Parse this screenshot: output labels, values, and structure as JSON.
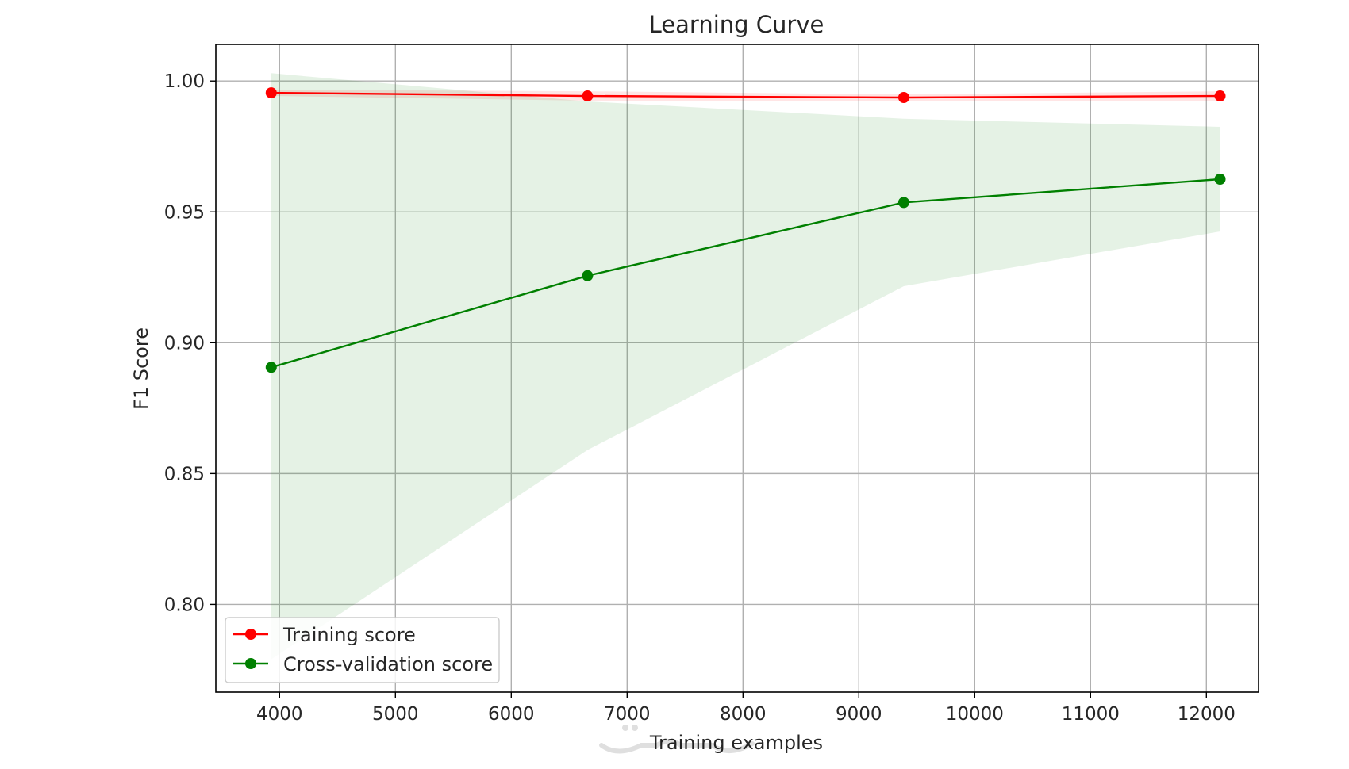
{
  "chart_data": {
    "type": "line",
    "title": "Learning Curve",
    "xlabel": "Training examples",
    "ylabel": "F1 Score",
    "xlim": [
      3450,
      12450
    ],
    "ylim": [
      0.7665,
      1.014
    ],
    "xticks": [
      4000,
      5000,
      6000,
      7000,
      8000,
      9000,
      10000,
      11000,
      12000
    ],
    "xtick_labels": [
      "4000",
      "5000",
      "6000",
      "7000",
      "8000",
      "9000",
      "10000",
      "11000",
      "12000"
    ],
    "yticks": [
      0.8,
      0.85,
      0.9,
      0.95,
      1.0
    ],
    "ytick_labels": [
      "0.80",
      "0.85",
      "0.90",
      "0.95",
      "1.00"
    ],
    "grid": true,
    "legend_position": "lower-left",
    "x": [
      3928,
      6658,
      9388,
      12118
    ],
    "series": [
      {
        "name": "Training score",
        "color": "#ff0000",
        "values": [
          0.9955,
          0.9943,
          0.9937,
          0.9943
        ],
        "band_low": [
          0.9943,
          0.9925,
          0.9925,
          0.9925
        ],
        "band_high": [
          0.9967,
          0.9961,
          0.9949,
          0.9961
        ],
        "band_color": "#ff0000"
      },
      {
        "name": "Cross-validation score",
        "color": "#008000",
        "values": [
          0.8906,
          0.9256,
          0.9536,
          0.9625
        ],
        "band_low": [
          0.779,
          0.859,
          0.9216,
          0.9425
        ],
        "band_high": [
          1.003,
          0.9922,
          0.9856,
          0.9825
        ],
        "band_color": "#008000"
      }
    ]
  }
}
